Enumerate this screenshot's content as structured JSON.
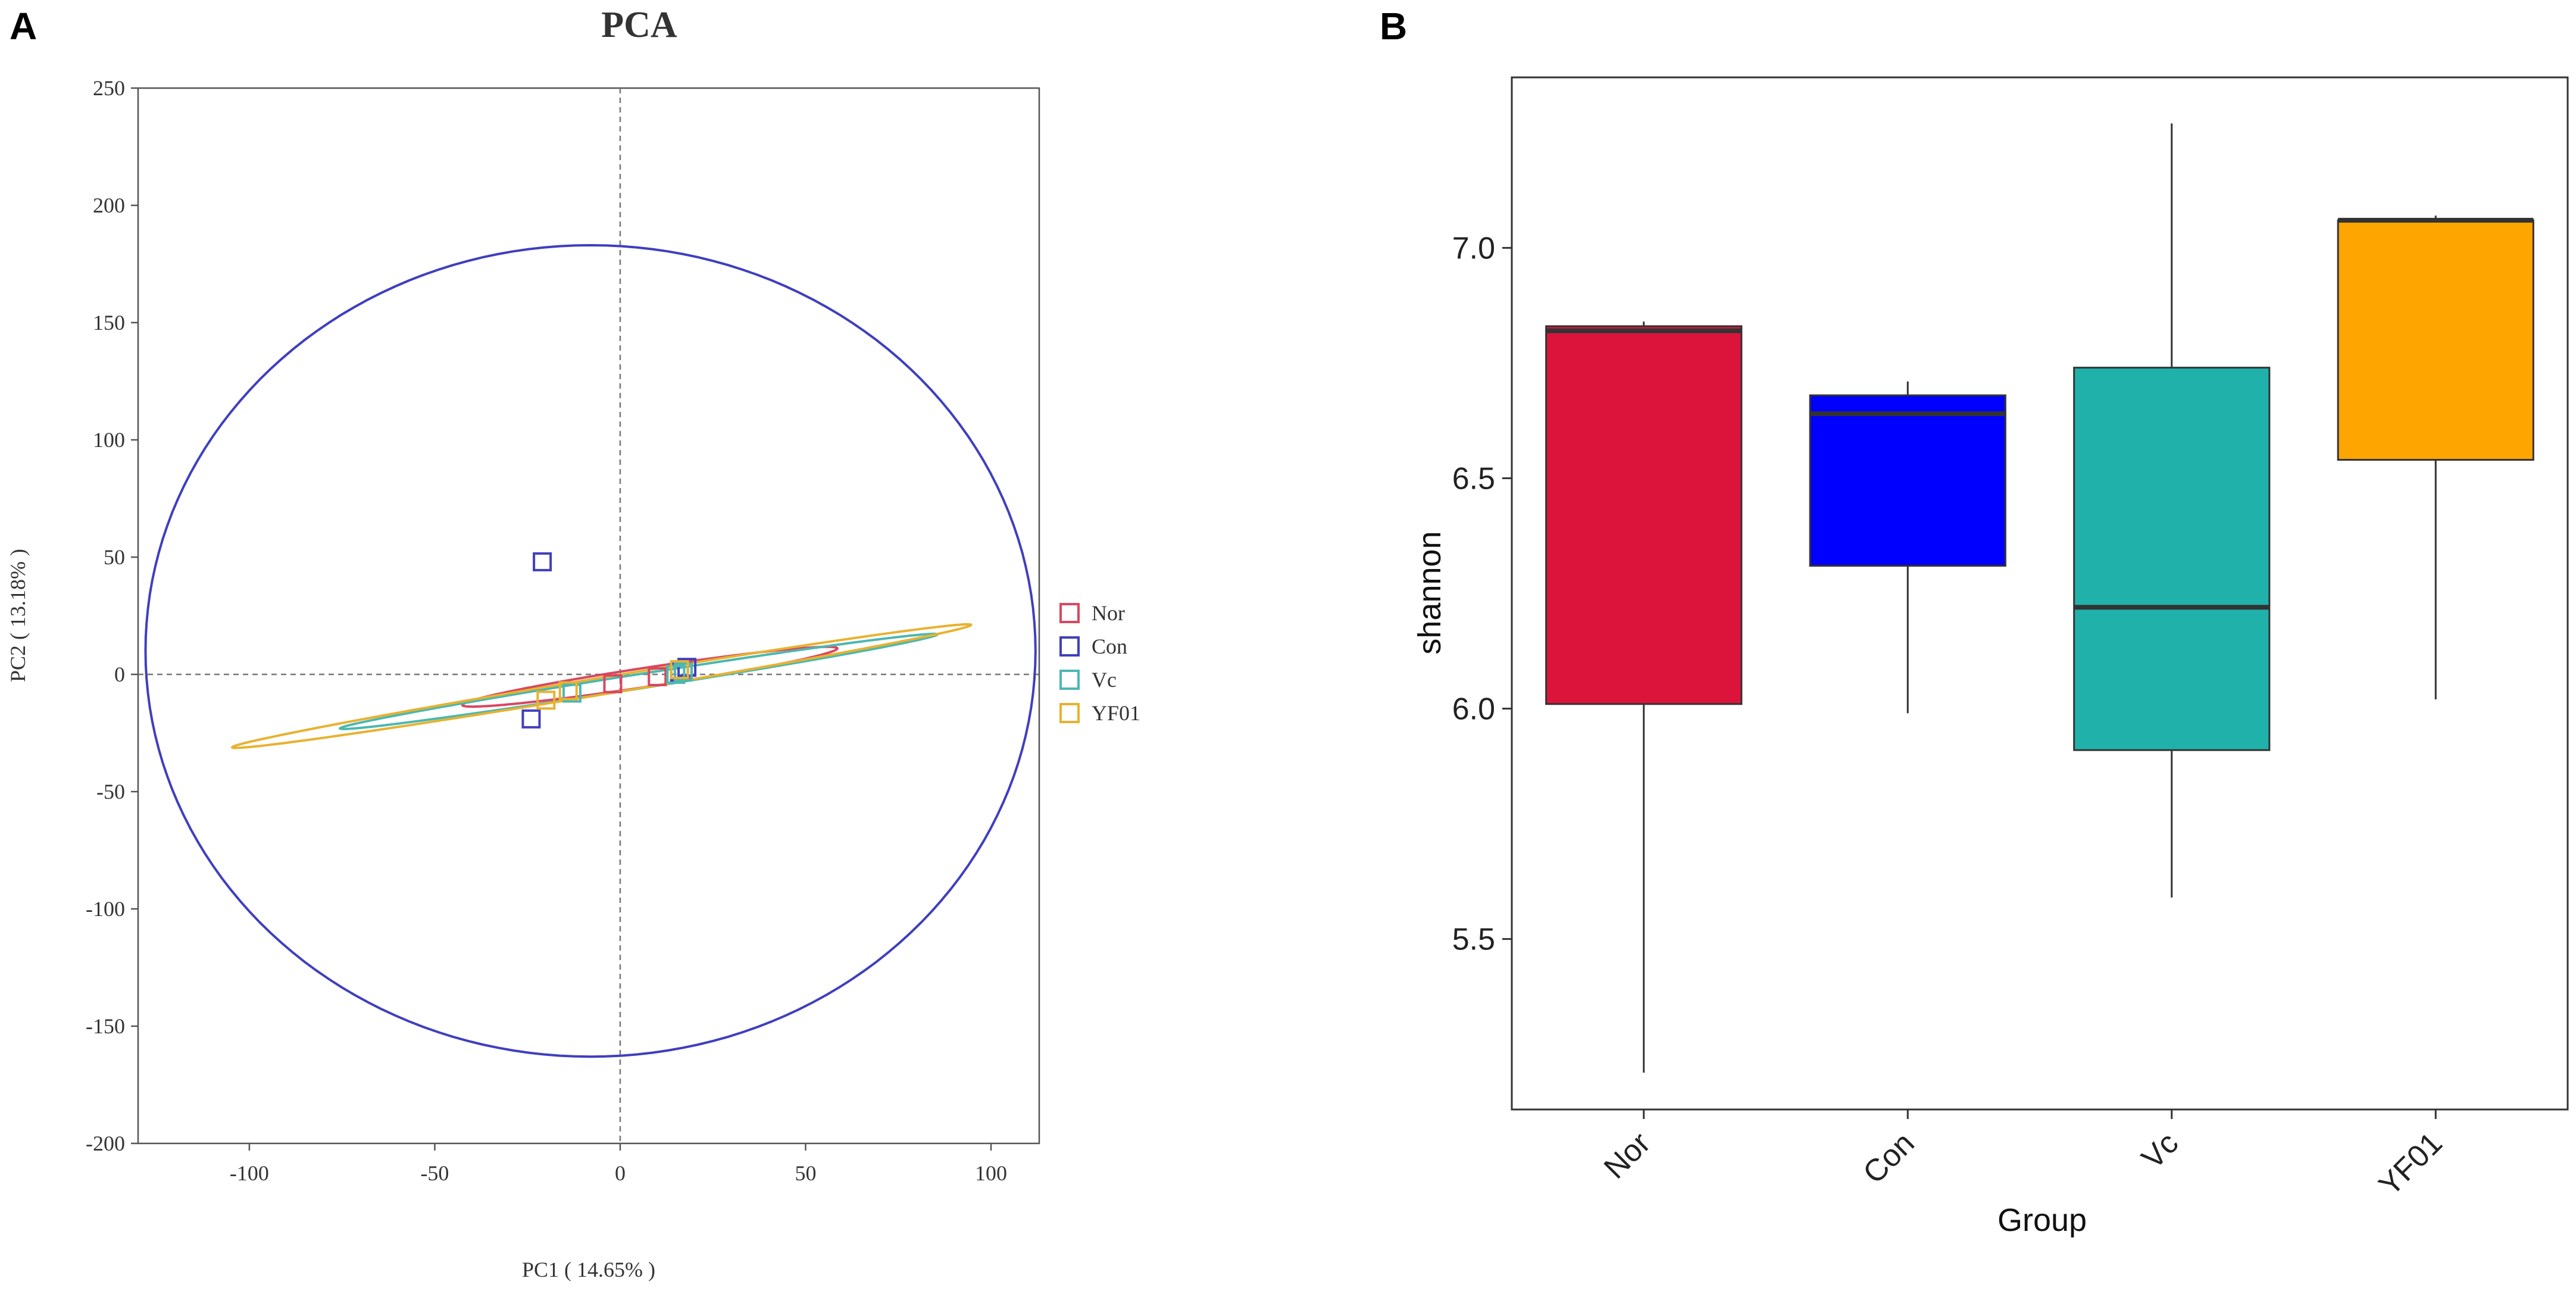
{
  "panels": {
    "a": {
      "letter": "A"
    },
    "b": {
      "letter": "B"
    }
  },
  "chart_data": [
    {
      "type": "scatter",
      "panel": "A",
      "title": "PCA",
      "xlabel": "PC1 ( 14.65% )",
      "ylabel": "PC2 ( 13.18% )",
      "xlim": [
        -130,
        113
      ],
      "ylim": [
        -200,
        250
      ],
      "xticks": [
        -100,
        -50,
        0,
        50,
        100
      ],
      "yticks": [
        -200,
        -150,
        -100,
        -50,
        0,
        50,
        100,
        150,
        200,
        250
      ],
      "reference_lines": {
        "x": 0,
        "y": 0,
        "style": "dashed"
      },
      "legend": {
        "position": "right",
        "entries": [
          "Nor",
          "Con",
          "Vc",
          "YF01"
        ]
      },
      "series": [
        {
          "name": "Nor",
          "color": "#d9475f",
          "points": [
            [
              -2,
              -4
            ],
            [
              10,
              -1
            ],
            [
              17,
              2
            ]
          ],
          "ellipse": {
            "cx": 8,
            "cy": -1,
            "rx": 52,
            "ry": 4,
            "angle_deg": 13.5
          }
        },
        {
          "name": "Con",
          "color": "#3f3fbf",
          "points": [
            [
              -21,
              48
            ],
            [
              -24,
              -19
            ],
            [
              18,
              3
            ],
            [
              16,
              1
            ]
          ],
          "ellipse": {
            "cx": -8,
            "cy": 10,
            "rx": 120,
            "ry": 173,
            "angle_deg": 0
          }
        },
        {
          "name": "Vc",
          "color": "#4cb8b0",
          "points": [
            [
              -13,
              -8
            ],
            [
              15,
              0
            ],
            [
              17,
              1
            ]
          ],
          "ellipse": {
            "cx": 5,
            "cy": -3,
            "rx": 83,
            "ry": 3,
            "angle_deg": 14
          }
        },
        {
          "name": "YF01",
          "color": "#e8b230",
          "points": [
            [
              -20,
              -11
            ],
            [
              -14,
              -7
            ],
            [
              16,
              2
            ]
          ],
          "ellipse": {
            "cx": -5,
            "cy": -5,
            "rx": 103,
            "ry": 3.5,
            "angle_deg": 14.7
          }
        }
      ]
    },
    {
      "type": "box",
      "panel": "B",
      "title": "",
      "xlabel": "Group",
      "ylabel": "shannon",
      "ylim": [
        5.13,
        7.37
      ],
      "yticks": [
        5.5,
        6.0,
        6.5,
        7.0
      ],
      "ytick_labels": [
        "5.5",
        "6.0",
        "6.5",
        "7.0"
      ],
      "categories": [
        "Nor",
        "Con",
        "Vc",
        "YF01"
      ],
      "boxes": [
        {
          "name": "Nor",
          "color": "#dc143c",
          "min": 5.21,
          "q1": 6.01,
          "median": 6.82,
          "q3": 6.83,
          "max": 6.84
        },
        {
          "name": "Con",
          "color": "#0000ff",
          "min": 5.99,
          "q1": 6.31,
          "median": 6.64,
          "q3": 6.68,
          "max": 6.71
        },
        {
          "name": "Vc",
          "color": "#20b2aa",
          "min": 5.59,
          "q1": 5.91,
          "median": 6.22,
          "q3": 6.74,
          "max": 7.27
        },
        {
          "name": "YF01",
          "color": "#ffa500",
          "min": 6.02,
          "q1": 6.54,
          "median": 7.06,
          "q3": 7.06,
          "max": 7.07
        }
      ]
    }
  ]
}
